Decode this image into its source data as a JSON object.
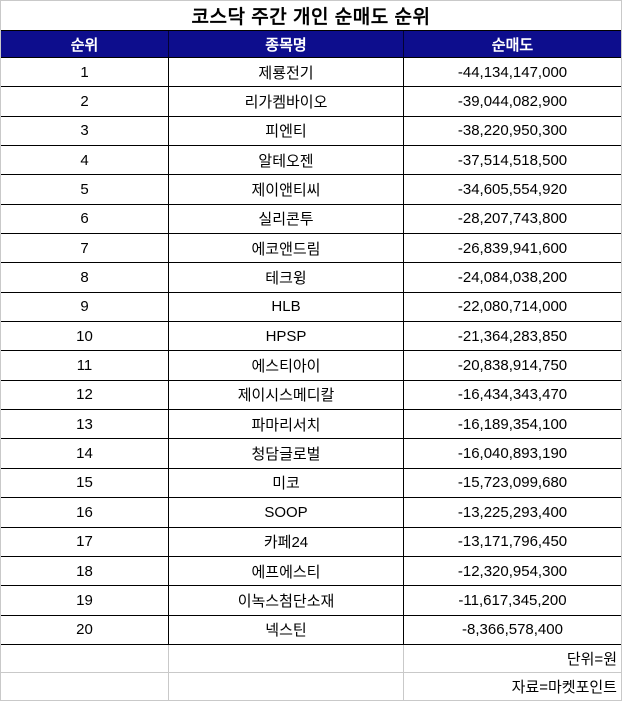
{
  "chart_data": {
    "type": "table",
    "title": "코스닥 주간 개인 순매도 순위",
    "columns": [
      "순위",
      "종목명",
      "순매도"
    ],
    "rows": [
      {
        "rank": "1",
        "name": "제룡전기",
        "amount": "-44,134,147,000"
      },
      {
        "rank": "2",
        "name": "리가켐바이오",
        "amount": "-39,044,082,900"
      },
      {
        "rank": "3",
        "name": "피엔티",
        "amount": "-38,220,950,300"
      },
      {
        "rank": "4",
        "name": "알테오젠",
        "amount": "-37,514,518,500"
      },
      {
        "rank": "5",
        "name": "제이앤티씨",
        "amount": "-34,605,554,920"
      },
      {
        "rank": "6",
        "name": "실리콘투",
        "amount": "-28,207,743,800"
      },
      {
        "rank": "7",
        "name": "에코앤드림",
        "amount": "-26,839,941,600"
      },
      {
        "rank": "8",
        "name": "테크윙",
        "amount": "-24,084,038,200"
      },
      {
        "rank": "9",
        "name": "HLB",
        "amount": "-22,080,714,000"
      },
      {
        "rank": "10",
        "name": "HPSP",
        "amount": "-21,364,283,850"
      },
      {
        "rank": "11",
        "name": "에스티아이",
        "amount": "-20,838,914,750"
      },
      {
        "rank": "12",
        "name": "제이시스메디칼",
        "amount": "-16,434,343,470"
      },
      {
        "rank": "13",
        "name": "파마리서치",
        "amount": "-16,189,354,100"
      },
      {
        "rank": "14",
        "name": "청담글로벌",
        "amount": "-16,040,893,190"
      },
      {
        "rank": "15",
        "name": "미코",
        "amount": "-15,723,099,680"
      },
      {
        "rank": "16",
        "name": "SOOP",
        "amount": "-13,225,293,400"
      },
      {
        "rank": "17",
        "name": "카페24",
        "amount": "-13,171,796,450"
      },
      {
        "rank": "18",
        "name": "에프에스티",
        "amount": "-12,320,954,300"
      },
      {
        "rank": "19",
        "name": "이녹스첨단소재",
        "amount": "-11,617,345,200"
      },
      {
        "rank": "20",
        "name": "넥스틴",
        "amount": "-8,366,578,400"
      }
    ],
    "footer": {
      "unit": "단위=원",
      "source": "자료=마켓포인트"
    },
    "colors": {
      "header_bg": "#0d0d8d",
      "header_text": "#ffffff",
      "grid": "#000000",
      "light_grid": "#c9c9c9"
    }
  }
}
